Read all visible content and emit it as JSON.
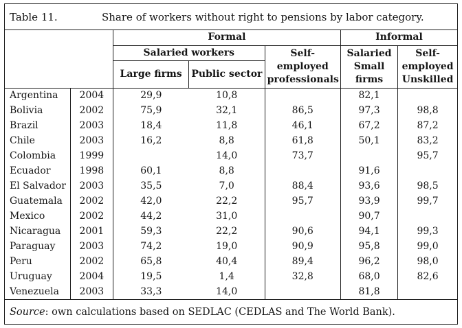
{
  "title": {
    "label": "Table 11.",
    "caption": "Share of workers without right to pensions by labor category."
  },
  "table": {
    "groups": {
      "formal": "Formal",
      "informal": "Informal"
    },
    "headers": {
      "salaried_workers": "Salaried workers",
      "large_firms": "Large firms",
      "public_sector": "Public sector",
      "self_employed_professionals": [
        "Self-",
        "employed",
        "professionals"
      ],
      "salaried_small_firms": [
        "Salaried",
        "Small",
        "firms"
      ],
      "self_employed_unskilled": [
        "Self-",
        "employed",
        "Unskilled"
      ]
    },
    "columns": [
      "country",
      "year",
      "large_firms",
      "public_sector",
      "self_employed_professionals",
      "salaried_small_firms",
      "self_employed_unskilled"
    ],
    "rows": [
      {
        "country": "Argentina",
        "year": "2004",
        "large_firms": "29,9",
        "public_sector": "10,8",
        "self_employed_professionals": "",
        "salaried_small_firms": "82,1",
        "self_employed_unskilled": ""
      },
      {
        "country": "Bolivia",
        "year": "2002",
        "large_firms": "75,9",
        "public_sector": "32,1",
        "self_employed_professionals": "86,5",
        "salaried_small_firms": "97,3",
        "self_employed_unskilled": "98,8"
      },
      {
        "country": "Brazil",
        "year": "2003",
        "large_firms": "18,4",
        "public_sector": "11,8",
        "self_employed_professionals": "46,1",
        "salaried_small_firms": "67,2",
        "self_employed_unskilled": "87,2"
      },
      {
        "country": "Chile",
        "year": "2003",
        "large_firms": "16,2",
        "public_sector": "8,8",
        "self_employed_professionals": "61,8",
        "salaried_small_firms": "50,1",
        "self_employed_unskilled": "83,2"
      },
      {
        "country": "Colombia",
        "year": "1999",
        "large_firms": "",
        "public_sector": "14,0",
        "self_employed_professionals": "73,7",
        "salaried_small_firms": "",
        "self_employed_unskilled": "95,7"
      },
      {
        "country": "Ecuador",
        "year": "1998",
        "large_firms": "60,1",
        "public_sector": "8,8",
        "self_employed_professionals": "",
        "salaried_small_firms": "91,6",
        "self_employed_unskilled": ""
      },
      {
        "country": "El Salvador",
        "year": "2003",
        "large_firms": "35,5",
        "public_sector": "7,0",
        "self_employed_professionals": "88,4",
        "salaried_small_firms": "93,6",
        "self_employed_unskilled": "98,5"
      },
      {
        "country": "Guatemala",
        "year": "2002",
        "large_firms": "42,0",
        "public_sector": "22,2",
        "self_employed_professionals": "95,7",
        "salaried_small_firms": "93,9",
        "self_employed_unskilled": "99,7"
      },
      {
        "country": "Mexico",
        "year": "2002",
        "large_firms": "44,2",
        "public_sector": "31,0",
        "self_employed_professionals": "",
        "salaried_small_firms": "90,7",
        "self_employed_unskilled": ""
      },
      {
        "country": "Nicaragua",
        "year": "2001",
        "large_firms": "59,3",
        "public_sector": "22,2",
        "self_employed_professionals": "90,6",
        "salaried_small_firms": "94,1",
        "self_employed_unskilled": "99,3"
      },
      {
        "country": "Paraguay",
        "year": "2003",
        "large_firms": "74,2",
        "public_sector": "19,0",
        "self_employed_professionals": "90,9",
        "salaried_small_firms": "95,8",
        "self_employed_unskilled": "99,0"
      },
      {
        "country": "Peru",
        "year": "2002",
        "large_firms": "65,8",
        "public_sector": "40,4",
        "self_employed_professionals": "89,4",
        "salaried_small_firms": "96,2",
        "self_employed_unskilled": "98,0"
      },
      {
        "country": "Uruguay",
        "year": "2004",
        "large_firms": "19,5",
        "public_sector": "1,4",
        "self_employed_professionals": "32,8",
        "salaried_small_firms": "68,0",
        "self_employed_unskilled": "82,6"
      },
      {
        "country": "Venezuela",
        "year": "2003",
        "large_firms": "33,3",
        "public_sector": "14,0",
        "self_employed_professionals": "",
        "salaried_small_firms": "81,8",
        "self_employed_unskilled": ""
      }
    ]
  },
  "source": {
    "label": "Source",
    "text": ": own calculations based on SEDLAC (CEDLAS and The World Bank)."
  }
}
